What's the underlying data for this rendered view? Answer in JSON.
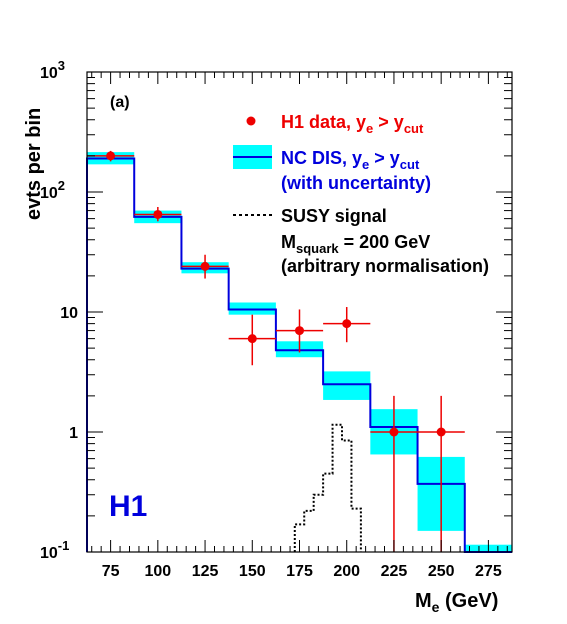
{
  "chart_data": {
    "type": "line",
    "panel_label": "(a)",
    "experiment_logo": "H1",
    "y_axis": {
      "label": "evts per bin",
      "scale": "log",
      "range": [
        0.1,
        1000
      ],
      "ticks": [
        {
          "value": 0.1,
          "label": "10",
          "exp": "-1"
        },
        {
          "value": 1,
          "label": "1",
          "exp": ""
        },
        {
          "value": 10,
          "label": "10",
          "exp": ""
        },
        {
          "value": 100,
          "label": "10",
          "exp": "2"
        },
        {
          "value": 1000,
          "label": "10",
          "exp": "3"
        }
      ]
    },
    "x_axis": {
      "label_main": "M",
      "label_sub": "e",
      "label_unit": " (GeV)",
      "range": [
        62.5,
        287.5
      ],
      "ticks": [
        75,
        100,
        125,
        150,
        175,
        200,
        225,
        250,
        275
      ]
    },
    "bins": {
      "edges": [
        62.5,
        87.5,
        112.5,
        137.5,
        162.5,
        187.5,
        212.5,
        237.5,
        262.5,
        287.5
      ],
      "nc_dis": [
        190,
        62,
        23,
        10.5,
        4.8,
        2.5,
        1.1,
        0.37,
        0.1
      ],
      "nc_dis_low": [
        170,
        55,
        21,
        9.5,
        4.2,
        1.85,
        0.65,
        0.15,
        0.1
      ],
      "nc_dis_high": [
        215,
        70,
        26,
        12.0,
        5.7,
        3.2,
        1.55,
        0.62,
        0.115
      ]
    },
    "h1_data": {
      "x": [
        75,
        100,
        125,
        150,
        175,
        200,
        225,
        250
      ],
      "y": [
        200,
        65,
        24,
        6,
        7,
        8,
        1,
        1
      ],
      "y_low": [
        180,
        57,
        19,
        3.6,
        4.6,
        5.6,
        0.1,
        0.1
      ],
      "y_high": [
        220,
        75,
        30,
        9.5,
        10.5,
        11,
        2.0,
        2.0
      ],
      "x_halfwidth": 12.5
    },
    "susy_signal": {
      "edges": [
        172.5,
        177.5,
        182.5,
        187.5,
        192.5,
        197.5,
        202.5,
        207.5
      ],
      "values": [
        0.17,
        0.22,
        0.3,
        0.45,
        1.15,
        0.85,
        0.23
      ]
    },
    "legend": {
      "data_label": "H1 data, y",
      "data_sub1": "e",
      "data_mid": " > y",
      "data_sub2": "cut",
      "nc_label": "NC DIS, y",
      "nc_sub1": "e",
      "nc_mid": " > y",
      "nc_sub2": "cut",
      "nc_line2": "(with uncertainty)",
      "susy_label": "SUSY signal",
      "susy_line2_main": "M",
      "susy_line2_sub": "squark",
      "susy_line2_rest": " = 200 GeV",
      "susy_line3": "(arbitrary normalisation)"
    },
    "colors": {
      "data": "#ee0000",
      "nc_line": "#0000dd",
      "band": "#00ffff",
      "susy": "#000000",
      "logo": "#0000dd"
    }
  }
}
